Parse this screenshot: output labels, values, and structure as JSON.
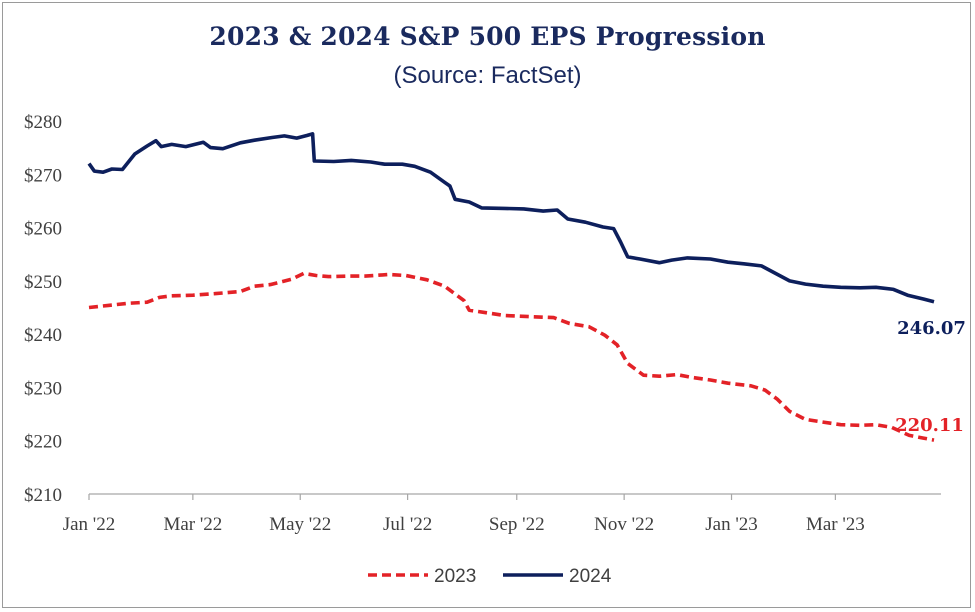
{
  "chart_data": {
    "type": "line",
    "title": "2023 & 2024 S&P 500 EPS Progression",
    "subtitle": "(Source: FactSet)",
    "xlabel": "",
    "ylabel": "",
    "x_ticks": [
      "Jan '22",
      "Mar '22",
      "May '22",
      "Jul '22",
      "Sep '22",
      "Nov '22",
      "Jan '23",
      "Mar '23"
    ],
    "y_ticks": [
      "$280",
      "$270",
      "$260",
      "$250",
      "$240",
      "$230",
      "$220",
      "$210"
    ],
    "ylim": [
      210,
      280
    ],
    "xlim": [
      "2022-01-01",
      "2023-04-30"
    ],
    "grid": false,
    "legend_position": "bottom",
    "series": [
      {
        "name": "2023",
        "color": "#e32227",
        "style": "dashed",
        "end_label": "220.11",
        "points": [
          [
            "2022-01-01",
            245.0
          ],
          [
            "2022-01-12",
            245.4
          ],
          [
            "2022-01-24",
            245.8
          ],
          [
            "2022-02-03",
            246.0
          ],
          [
            "2022-02-10",
            246.9
          ],
          [
            "2022-02-17",
            247.2
          ],
          [
            "2022-03-01",
            247.3
          ],
          [
            "2022-03-14",
            247.6
          ],
          [
            "2022-03-28",
            248.0
          ],
          [
            "2022-04-05",
            249.0
          ],
          [
            "2022-04-14",
            249.3
          ],
          [
            "2022-04-26",
            250.3
          ],
          [
            "2022-05-03",
            251.4
          ],
          [
            "2022-05-10",
            251.0
          ],
          [
            "2022-05-17",
            250.8
          ],
          [
            "2022-05-28",
            250.9
          ],
          [
            "2022-06-07",
            250.9
          ],
          [
            "2022-06-20",
            251.2
          ],
          [
            "2022-06-30",
            251.0
          ],
          [
            "2022-07-12",
            250.2
          ],
          [
            "2022-07-22",
            249.0
          ],
          [
            "2022-08-02",
            246.3
          ],
          [
            "2022-08-05",
            244.5
          ],
          [
            "2022-08-15",
            244.0
          ],
          [
            "2022-08-25",
            243.5
          ],
          [
            "2022-09-08",
            243.3
          ],
          [
            "2022-09-22",
            243.1
          ],
          [
            "2022-10-01",
            242.0
          ],
          [
            "2022-10-12",
            241.4
          ],
          [
            "2022-10-21",
            239.8
          ],
          [
            "2022-10-28",
            238.0
          ],
          [
            "2022-11-03",
            234.5
          ],
          [
            "2022-11-12",
            232.3
          ],
          [
            "2022-11-21",
            232.1
          ],
          [
            "2022-12-01",
            232.4
          ],
          [
            "2022-12-09",
            231.9
          ],
          [
            "2022-12-20",
            231.4
          ],
          [
            "2022-12-30",
            230.8
          ],
          [
            "2023-01-12",
            230.3
          ],
          [
            "2023-01-20",
            229.5
          ],
          [
            "2023-01-27",
            227.8
          ],
          [
            "2023-02-03",
            225.5
          ],
          [
            "2023-02-12",
            224.0
          ],
          [
            "2023-02-22",
            223.5
          ],
          [
            "2023-03-04",
            223.0
          ],
          [
            "2023-03-15",
            222.9
          ],
          [
            "2023-03-24",
            223.0
          ],
          [
            "2023-04-02",
            222.5
          ],
          [
            "2023-04-12",
            221.0
          ],
          [
            "2023-04-20",
            220.5
          ],
          [
            "2023-04-26",
            220.11
          ]
        ]
      },
      {
        "name": "2024",
        "color": "#0d1f5c",
        "style": "solid",
        "end_label": "246.07",
        "points": [
          [
            "2022-01-01",
            272.0
          ],
          [
            "2022-01-04",
            270.6
          ],
          [
            "2022-01-09",
            270.4
          ],
          [
            "2022-01-14",
            271.0
          ],
          [
            "2022-01-20",
            270.9
          ],
          [
            "2022-01-27",
            273.8
          ],
          [
            "2022-02-03",
            275.3
          ],
          [
            "2022-02-08",
            276.3
          ],
          [
            "2022-02-11",
            275.2
          ],
          [
            "2022-02-17",
            275.6
          ],
          [
            "2022-02-25",
            275.2
          ],
          [
            "2022-03-07",
            276.0
          ],
          [
            "2022-03-11",
            275.0
          ],
          [
            "2022-03-18",
            274.8
          ],
          [
            "2022-03-28",
            275.9
          ],
          [
            "2022-04-05",
            276.4
          ],
          [
            "2022-04-15",
            276.9
          ],
          [
            "2022-04-22",
            277.2
          ],
          [
            "2022-04-29",
            276.8
          ],
          [
            "2022-05-05",
            277.3
          ],
          [
            "2022-05-08",
            277.6
          ],
          [
            "2022-05-09",
            272.5
          ],
          [
            "2022-05-20",
            272.4
          ],
          [
            "2022-05-30",
            272.6
          ],
          [
            "2022-06-10",
            272.3
          ],
          [
            "2022-06-18",
            271.9
          ],
          [
            "2022-06-28",
            271.9
          ],
          [
            "2022-07-05",
            271.5
          ],
          [
            "2022-07-14",
            270.4
          ],
          [
            "2022-07-22",
            268.5
          ],
          [
            "2022-07-25",
            267.8
          ],
          [
            "2022-07-28",
            265.3
          ],
          [
            "2022-08-05",
            264.8
          ],
          [
            "2022-08-12",
            263.7
          ],
          [
            "2022-08-25",
            263.6
          ],
          [
            "2022-09-05",
            263.5
          ],
          [
            "2022-09-16",
            263.1
          ],
          [
            "2022-09-24",
            263.3
          ],
          [
            "2022-09-30",
            261.6
          ],
          [
            "2022-10-10",
            261.0
          ],
          [
            "2022-10-20",
            260.1
          ],
          [
            "2022-10-26",
            259.8
          ],
          [
            "2022-10-30",
            257.3
          ],
          [
            "2022-11-03",
            254.5
          ],
          [
            "2022-11-10",
            254.1
          ],
          [
            "2022-11-21",
            253.4
          ],
          [
            "2022-11-28",
            253.9
          ],
          [
            "2022-12-07",
            254.3
          ],
          [
            "2022-12-20",
            254.1
          ],
          [
            "2022-12-30",
            253.5
          ],
          [
            "2023-01-08",
            253.2
          ],
          [
            "2023-01-18",
            252.8
          ],
          [
            "2023-01-26",
            251.4
          ],
          [
            "2023-02-03",
            250.0
          ],
          [
            "2023-02-12",
            249.4
          ],
          [
            "2023-02-22",
            249.0
          ],
          [
            "2023-03-04",
            248.8
          ],
          [
            "2023-03-15",
            248.7
          ],
          [
            "2023-03-24",
            248.8
          ],
          [
            "2023-04-03",
            248.4
          ],
          [
            "2023-04-11",
            247.3
          ],
          [
            "2023-04-20",
            246.6
          ],
          [
            "2023-04-26",
            246.07
          ]
        ]
      }
    ]
  }
}
